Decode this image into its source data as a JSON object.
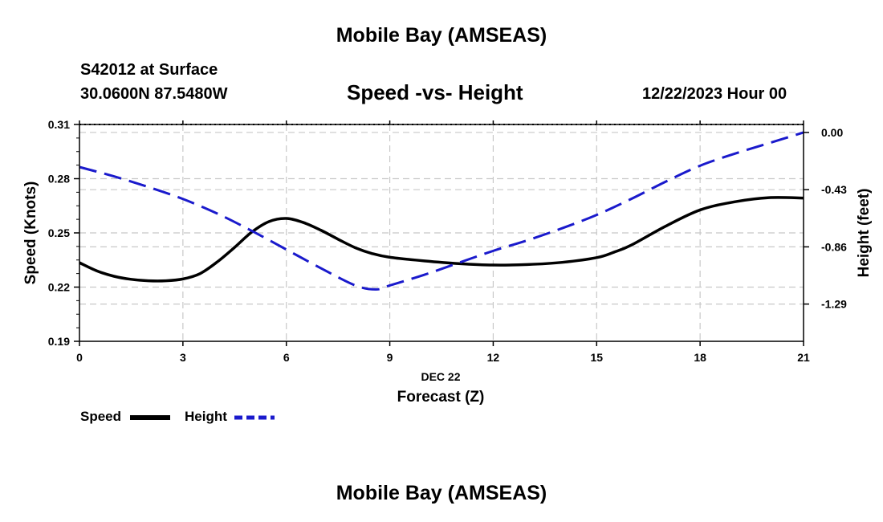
{
  "header": {
    "title_top": "Mobile Bay (AMSEAS)",
    "station": "S42012 at Surface",
    "coordinates": "30.0600N  87.5480W",
    "date_hour": "12/22/2023 Hour 00",
    "title_bottom": "Mobile Bay (AMSEAS)"
  },
  "legend": {
    "speed_label": "Speed",
    "height_label": "Height"
  },
  "colors": {
    "speed": "#000000",
    "height": "#1a1acc",
    "grid": "#c8c8c8"
  },
  "chart_data": {
    "type": "line",
    "title": "Speed -vs- Height",
    "xlabel": "Forecast (Z)",
    "x_date_label": "DEC 22",
    "x_ticks": [
      "0",
      "3",
      "6",
      "9",
      "12",
      "15",
      "18",
      "21"
    ],
    "x_tick_values": [
      0,
      3,
      6,
      9,
      12,
      15,
      18,
      21
    ],
    "xlim": [
      0,
      21
    ],
    "ylabel": "Speed (Knots)",
    "ylim": [
      0.19,
      0.31
    ],
    "y_ticks": [
      "0.19",
      "0.22",
      "0.25",
      "0.28",
      "0.31"
    ],
    "y_tick_values": [
      0.19,
      0.22,
      0.25,
      0.28,
      0.31
    ],
    "y2label": "Height (feet)",
    "y2lim": [
      -1.57,
      0.06
    ],
    "y2_ticks": [
      "0.00",
      "-0.43",
      "-0.86",
      "-1.29"
    ],
    "y2_tick_values": [
      0.0,
      -0.43,
      -0.86,
      -1.29
    ],
    "grid": true,
    "series": [
      {
        "name": "Speed",
        "axis": "left",
        "style": "solid",
        "x": [
          0,
          0.5,
          1,
          1.5,
          2,
          2.5,
          3,
          3.5,
          4,
          4.5,
          5,
          5.5,
          6,
          6.5,
          7,
          7.5,
          8,
          8.5,
          9,
          10,
          11,
          12,
          13,
          14,
          15,
          15.5,
          16,
          17,
          18,
          19,
          20,
          21
        ],
        "values": [
          0.2335,
          0.229,
          0.226,
          0.2243,
          0.2235,
          0.2235,
          0.2245,
          0.2275,
          0.234,
          0.242,
          0.2505,
          0.2563,
          0.258,
          0.2557,
          0.2515,
          0.2465,
          0.2418,
          0.2385,
          0.2365,
          0.2345,
          0.233,
          0.2322,
          0.2325,
          0.2337,
          0.2363,
          0.2393,
          0.2432,
          0.2537,
          0.2627,
          0.2672,
          0.2695,
          0.2693
        ]
      },
      {
        "name": "Height",
        "axis": "right",
        "style": "dashed",
        "x": [
          0,
          1,
          2,
          3,
          4,
          5,
          6,
          7,
          8,
          8.6,
          9,
          10,
          11,
          12,
          13,
          14,
          15,
          16,
          17,
          18,
          19,
          20,
          21
        ],
        "values": [
          -0.26,
          -0.33,
          -0.41,
          -0.5,
          -0.61,
          -0.74,
          -0.88,
          -1.02,
          -1.15,
          -1.18,
          -1.15,
          -1.07,
          -0.98,
          -0.89,
          -0.81,
          -0.72,
          -0.62,
          -0.5,
          -0.37,
          -0.25,
          -0.16,
          -0.08,
          0.0
        ]
      }
    ]
  }
}
